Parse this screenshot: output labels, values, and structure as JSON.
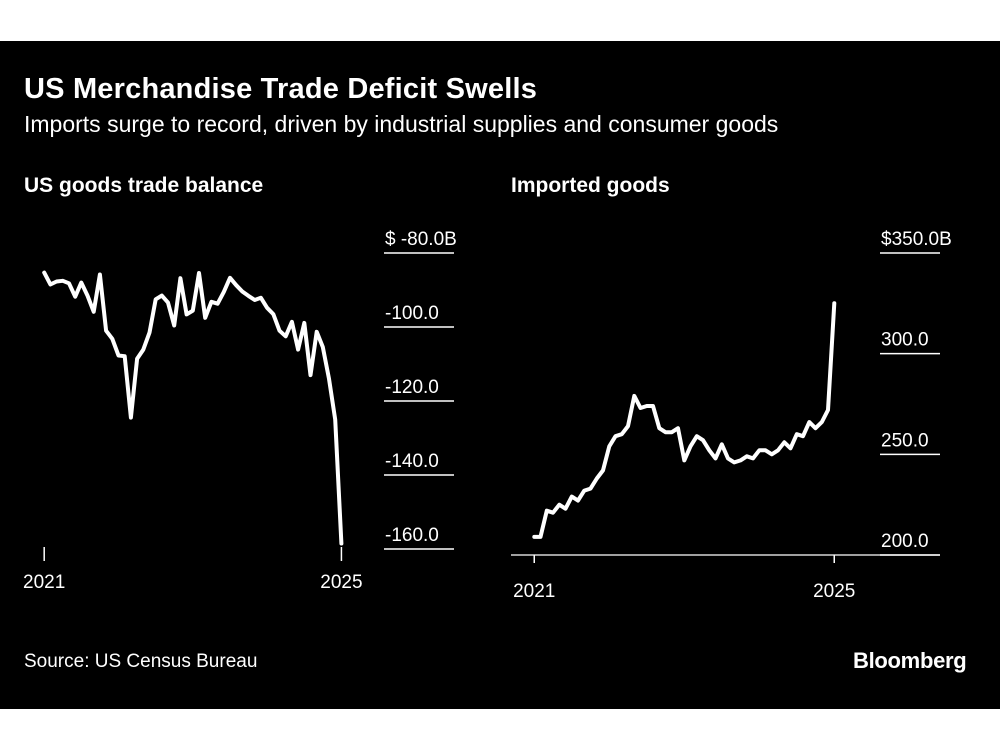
{
  "title": "US Merchandise Trade Deficit Swells",
  "subtitle": "Imports surge to record, driven by industrial supplies and consumer goods",
  "source": "Source: US Census Bureau",
  "brand": "Bloomberg",
  "colors": {
    "background": "#000000",
    "line": "#ffffff",
    "text": "#ffffff"
  },
  "chart_data": [
    {
      "type": "line",
      "title": "US goods trade balance",
      "xlabel": "",
      "ylabel": "",
      "unit": "$ billions",
      "x_ticks": [
        "2021",
        "2025"
      ],
      "y_ticks": [
        "$ -80.0B",
        "-100.0",
        "-120.0",
        "-140.0",
        "-160.0"
      ],
      "y_tick_values": [
        -80,
        -100,
        -120,
        -140,
        -160
      ],
      "ylim": [
        -165,
        -78
      ],
      "xlim": [
        "2020-12",
        "2025-04"
      ],
      "series": [
        {
          "x": [
            "2021-01",
            "2021-02",
            "2021-03",
            "2021-04",
            "2021-05",
            "2021-06",
            "2021-07",
            "2021-08",
            "2021-09",
            "2021-10",
            "2021-11",
            "2021-12",
            "2022-01",
            "2022-02",
            "2022-03",
            "2022-04",
            "2022-05",
            "2022-06",
            "2022-07",
            "2022-08",
            "2022-09",
            "2022-10",
            "2022-11",
            "2022-12",
            "2023-01",
            "2023-02",
            "2023-03",
            "2023-04",
            "2023-05",
            "2023-06",
            "2023-07",
            "2023-08",
            "2023-09",
            "2023-10",
            "2023-11",
            "2023-12",
            "2024-01",
            "2024-02",
            "2024-03",
            "2024-04",
            "2024-05",
            "2024-06",
            "2024-07",
            "2024-08",
            "2024-09",
            "2024-10",
            "2024-11",
            "2024-12",
            "2025-01"
          ],
          "values": [
            -85.3,
            -88.5,
            -87.7,
            -87.5,
            -88.2,
            -91.8,
            -88.0,
            -91.5,
            -95.9,
            -85.8,
            -101.0,
            -103.2,
            -107.7,
            -107.9,
            -124.5,
            -108.6,
            -106.1,
            -101.5,
            -92.5,
            -91.5,
            -93.4,
            -99.6,
            -86.8,
            -96.6,
            -95.6,
            -85.4,
            -97.5,
            -93.2,
            -93.7,
            -90.5,
            -86.7,
            -88.7,
            -90.4,
            -91.6,
            -92.7,
            -92.1,
            -94.8,
            -96.5,
            -101.0,
            -102.5,
            -98.6,
            -106.1,
            -98.9,
            -113.0,
            -101.3,
            -105.4,
            -114.0,
            -125.0,
            -158.5
          ]
        }
      ]
    },
    {
      "type": "line",
      "title": "Imported goods",
      "xlabel": "",
      "ylabel": "",
      "unit": "$ billions",
      "x_ticks": [
        "2021",
        "2025"
      ],
      "y_ticks": [
        "$350.0B",
        "300.0",
        "250.0",
        "200.0"
      ],
      "y_tick_values": [
        350,
        300,
        250,
        200
      ],
      "ylim": [
        190,
        355
      ],
      "xlim": [
        "2020-12",
        "2025-04"
      ],
      "series": [
        {
          "x": [
            "2021-01",
            "2021-02",
            "2021-03",
            "2021-04",
            "2021-05",
            "2021-06",
            "2021-07",
            "2021-08",
            "2021-09",
            "2021-10",
            "2021-11",
            "2021-12",
            "2022-01",
            "2022-02",
            "2022-03",
            "2022-04",
            "2022-05",
            "2022-06",
            "2022-07",
            "2022-08",
            "2022-09",
            "2022-10",
            "2022-11",
            "2022-12",
            "2023-01",
            "2023-02",
            "2023-03",
            "2023-04",
            "2023-05",
            "2023-06",
            "2023-07",
            "2023-08",
            "2023-09",
            "2023-10",
            "2023-11",
            "2023-12",
            "2024-01",
            "2024-02",
            "2024-03",
            "2024-04",
            "2024-05",
            "2024-06",
            "2024-07",
            "2024-08",
            "2024-09",
            "2024-10",
            "2024-11",
            "2024-12",
            "2025-01"
          ],
          "values": [
            209,
            209,
            222,
            221,
            225,
            223,
            229,
            227,
            232,
            233,
            238,
            242,
            254,
            259,
            260,
            264,
            279,
            273,
            274,
            274,
            263,
            261,
            261,
            263,
            247,
            254,
            259,
            257,
            252,
            248,
            255,
            248,
            246,
            247,
            249,
            248,
            252,
            252,
            250,
            252,
            256,
            253,
            260,
            259,
            266,
            263,
            266,
            272,
            325
          ]
        }
      ]
    }
  ]
}
